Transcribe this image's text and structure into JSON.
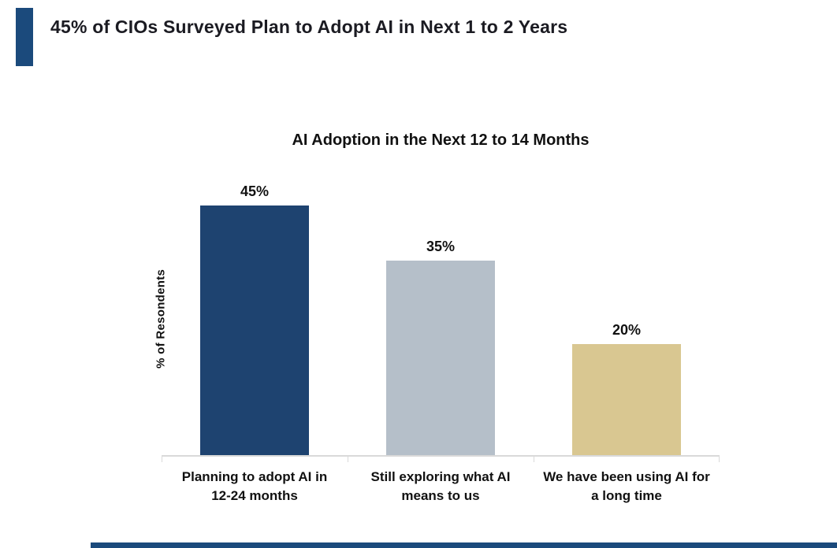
{
  "page": {
    "header_title": "45% of CIOs Surveyed Plan to Adopt AI in Next 1 to 2 Years"
  },
  "chart_data": {
    "type": "bar",
    "title": "AI Adoption in the Next 12 to 14 Months",
    "ylabel": "% of Resondents",
    "xlabel": "",
    "categories": [
      "Planning to adopt AI in 12-24 months",
      "Still exploring what AI means to us",
      "We have been using AI for a long time"
    ],
    "categories_display": [
      {
        "line1": "Planning to adopt AI in",
        "line2": "12-24 months"
      },
      {
        "line1": "Still exploring what AI",
        "line2": "means to us"
      },
      {
        "line1": "We have been using AI for",
        "line2": "a long time"
      }
    ],
    "values": [
      45,
      35,
      20
    ],
    "value_labels": [
      "45%",
      "35%",
      "20%"
    ],
    "bar_colors": [
      "#1e4370",
      "#b5bfc9",
      "#d9c791"
    ],
    "ylim": [
      0,
      50
    ],
    "grid": false,
    "legend": false,
    "axis_line_color": "#d9d9d9"
  },
  "theme": {
    "accent_navy": "#1b4a7c",
    "text_color": "#1b1b22",
    "background": "#ffffff"
  }
}
